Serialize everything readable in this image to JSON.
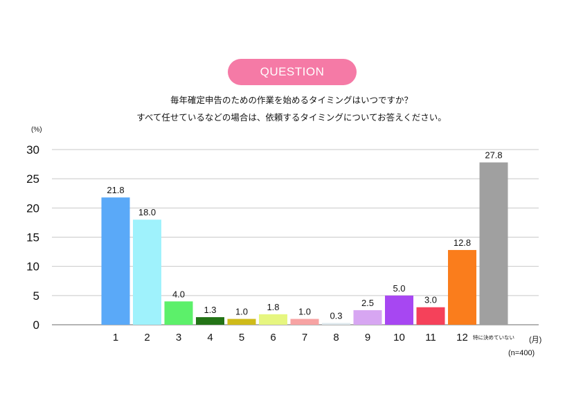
{
  "header": {
    "badge_label": "QUESTION",
    "question_line1": "毎年確定申告のための作業を始めるタイミングはいつですか？",
    "question_line2": "すべて任せているなどの場合は、依頼するタイミングについてお答えください。"
  },
  "chart_data": {
    "type": "bar",
    "y_unit": "(%)",
    "x_unit": "(月)",
    "sample_note": "(n=400)",
    "ylim": [
      0,
      30
    ],
    "yticks": [
      0,
      5,
      10,
      15,
      20,
      25,
      30
    ],
    "grid": true,
    "legend": "none",
    "categories": [
      "1",
      "2",
      "3",
      "4",
      "5",
      "6",
      "7",
      "8",
      "9",
      "10",
      "11",
      "12",
      "特に決めていない"
    ],
    "values": [
      21.8,
      18.0,
      4.0,
      1.3,
      1.0,
      1.8,
      1.0,
      0.3,
      2.5,
      5.0,
      3.0,
      12.8,
      27.8
    ],
    "value_labels": [
      "21.8",
      "18.0",
      "4.0",
      "1.3",
      "1.0",
      "1.8",
      "1.0",
      "0.3",
      "2.5",
      "5.0",
      "3.0",
      "12.8",
      "27.8"
    ],
    "colors": [
      "#5aa9f8",
      "#9ff2fc",
      "#5cf06a",
      "#237316",
      "#cfbb1a",
      "#e6f680",
      "#f7a3a3",
      "#dfe9ee",
      "#d7a6f2",
      "#a747f2",
      "#f5415a",
      "#fa7d1c",
      "#a0a0a0"
    ]
  }
}
